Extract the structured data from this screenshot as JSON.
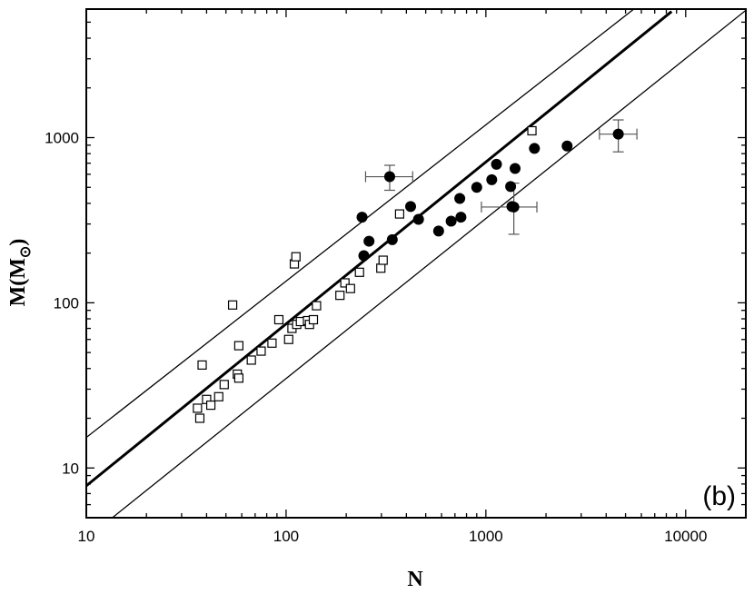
{
  "chart_data": {
    "type": "scatter",
    "xscale": "log",
    "yscale": "log",
    "xlim": [
      10,
      20000
    ],
    "ylim": [
      5,
      6000
    ],
    "xlabel": "N",
    "ylabel": "M(M",
    "ylabel_subscript": "⊙",
    "ylabel_close": ")",
    "panel_label": "(b)",
    "x_ticks": [
      {
        "value": 10,
        "label": "10"
      },
      {
        "value": 100,
        "label": "100"
      },
      {
        "value": 1000,
        "label": "1000"
      },
      {
        "value": 10000,
        "label": "10000"
      }
    ],
    "y_ticks": [
      {
        "value": 10,
        "label": "10"
      },
      {
        "value": 100,
        "label": "100"
      },
      {
        "value": 1000,
        "label": "1000"
      }
    ],
    "series": [
      {
        "marker": "open-square",
        "x": [
          36,
          37,
          38,
          40,
          42,
          46,
          49,
          54,
          57,
          58,
          58,
          67,
          75,
          85,
          92,
          103,
          107,
          110,
          112,
          113,
          118,
          128,
          131,
          137,
          142,
          186,
          197,
          210,
          233,
          298,
          306,
          370,
          1700
        ],
        "y": [
          23,
          20,
          42,
          26,
          24,
          27,
          32,
          97,
          37,
          35,
          55,
          45,
          51,
          57,
          79,
          60,
          70,
          172,
          190,
          74,
          77,
          78,
          74,
          79,
          96,
          111,
          132,
          122,
          153,
          162,
          181,
          345,
          1100
        ]
      },
      {
        "marker": "filled-circle",
        "x": [
          240,
          245,
          260,
          330,
          340,
          420,
          460,
          580,
          670,
          740,
          750,
          900,
          1070,
          1130,
          1330,
          1350,
          1380,
          1400,
          1750,
          2550,
          4600
        ],
        "y": [
          330,
          193,
          236,
          580,
          241,
          383,
          320,
          272,
          312,
          428,
          330,
          500,
          556,
          690,
          506,
          383,
          380,
          650,
          860,
          890,
          1050
        ],
        "error_bars": [
          {
            "x": 330,
            "y": 580,
            "xerr": [
              250,
              430
            ],
            "yerr": [
              480,
              680
            ]
          },
          {
            "x": 1380,
            "y": 380,
            "xerr": [
              950,
              1800
            ],
            "yerr": [
              260,
              530
            ]
          },
          {
            "x": 4600,
            "y": 1050,
            "xerr": [
              3700,
              5700
            ],
            "yerr": [
              820,
              1280
            ]
          }
        ]
      }
    ],
    "lines": [
      {
        "style": "thick",
        "x": [
          10,
          8500
        ],
        "y": [
          7.8,
          5800
        ]
      },
      {
        "style": "thin",
        "x": [
          10,
          5500
        ],
        "y": [
          15.3,
          6000
        ]
      },
      {
        "style": "thin",
        "x": [
          13.5,
          20000
        ],
        "y": [
          5,
          5900
        ]
      }
    ]
  }
}
